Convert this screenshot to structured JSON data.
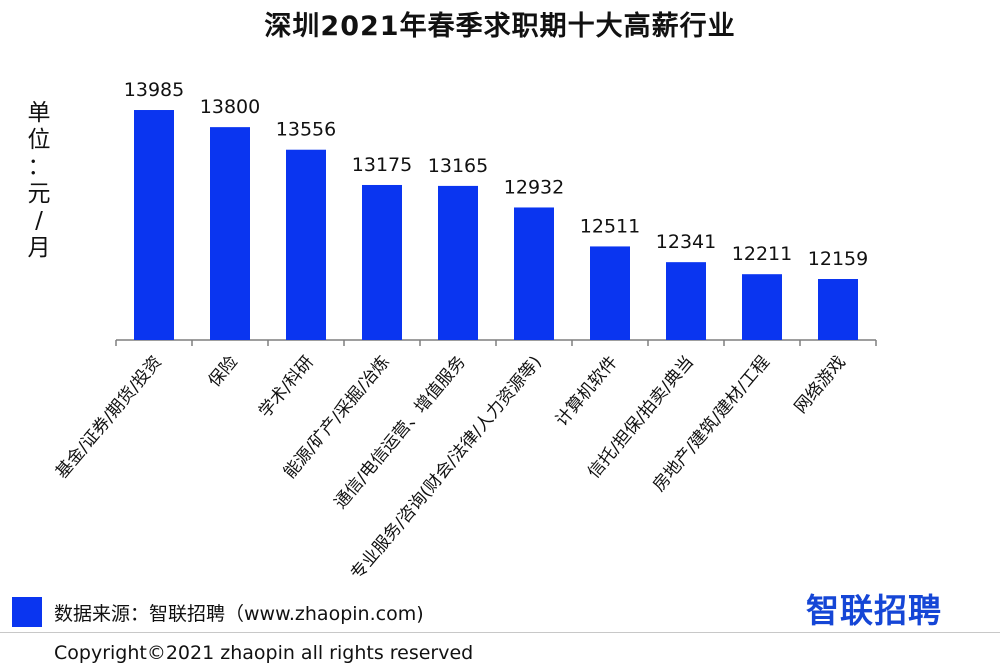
{
  "title": "深圳2021年春季求职期十大高薪行业",
  "unit_label": "单位：元/月",
  "colors": {
    "bar": "#0a35f0",
    "brand": "#1546d6",
    "axis": "#7f7f7f"
  },
  "chart_data": {
    "type": "bar",
    "title": "深圳2021年春季求职期十大高薪行业",
    "ylabel": "单位：元/月",
    "categories": [
      "基金/证券/期货/投资",
      "保险",
      "学术/科研",
      "能源/矿产/采掘/冶炼",
      "通信/电信运营、增值服务",
      "专业服务/咨询(财会/法律/人力资源等)",
      "计算机软件",
      "信托/担保/拍卖/典当",
      "房地产/建筑/建材/工程",
      "网络游戏"
    ],
    "values": [
      13985,
      13800,
      13556,
      13175,
      13165,
      12932,
      12511,
      12341,
      12211,
      12159
    ],
    "ylim": [
      11500,
      14050
    ],
    "grid": false,
    "data_labels": true
  },
  "legend_source": "数据来源：智联招聘（www.zhaopin.com)",
  "brand": "智联招聘",
  "copyright": "Copyright©2021 zhaopin all rights reserved"
}
